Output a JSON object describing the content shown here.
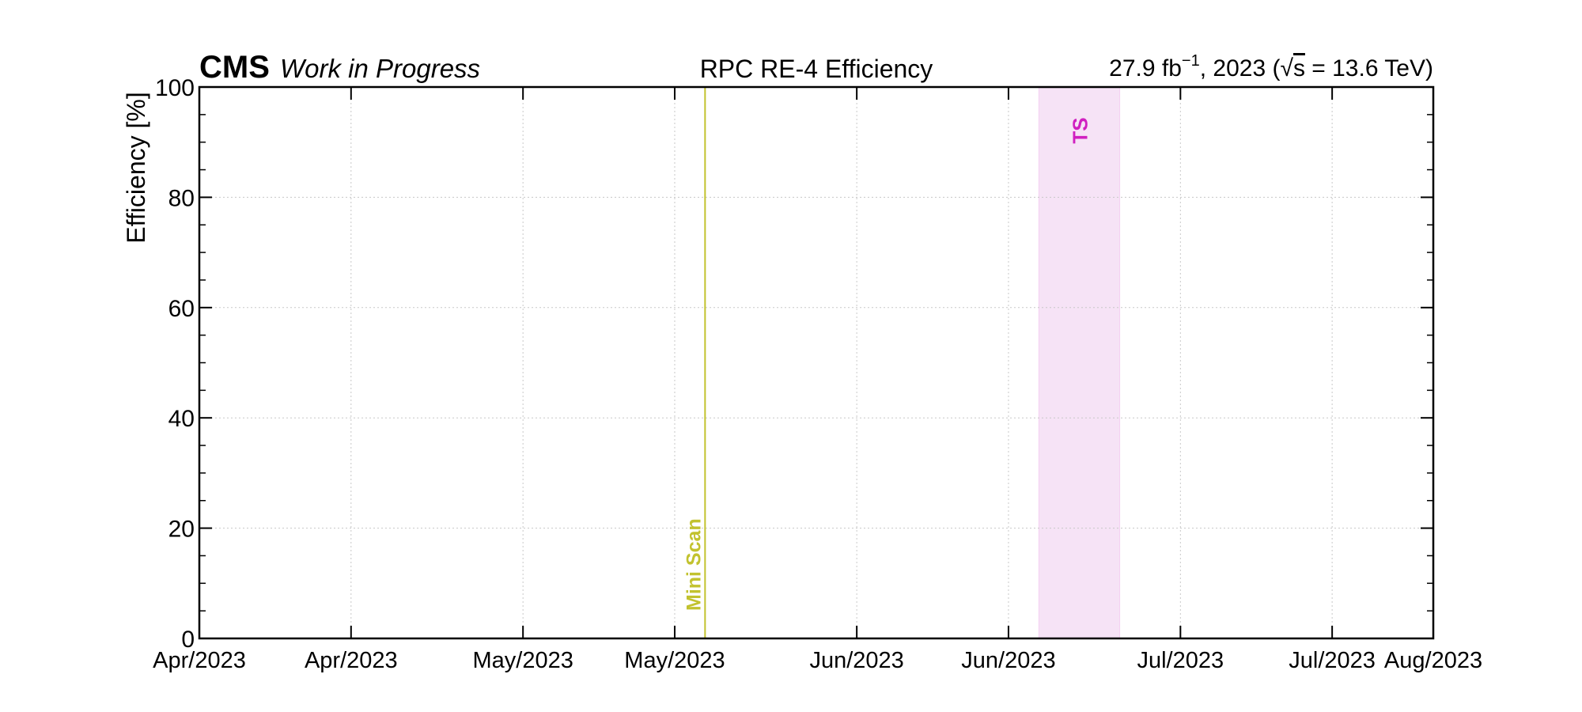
{
  "header": {
    "experiment": "CMS",
    "status": "Work in Progress",
    "lumi_value": "27.9 fb",
    "lumi_exp": "−1",
    "lumi_year": ", 2023 (",
    "sqrt_symbol": "√",
    "sqrt_arg": "s",
    "energy": " = 13.6 TeV)"
  },
  "chart_data": {
    "type": "line",
    "title": "RPC RE-4 Efficiency",
    "xlabel": "",
    "ylabel": "Efficiency [%]",
    "x_axis_type": "date",
    "xlim": [
      "2023-04-01",
      "2023-08-01"
    ],
    "ylim": [
      0,
      100
    ],
    "yticks": [
      0,
      20,
      40,
      60,
      80,
      100
    ],
    "y_minor_step": 5,
    "xticks": [
      {
        "date": "2023-04-01",
        "label": "Apr/2023"
      },
      {
        "date": "2023-04-16",
        "label": "Apr/2023"
      },
      {
        "date": "2023-05-03",
        "label": "May/2023"
      },
      {
        "date": "2023-05-18",
        "label": "May/2023"
      },
      {
        "date": "2023-06-05",
        "label": "Jun/2023"
      },
      {
        "date": "2023-06-20",
        "label": "Jun/2023"
      },
      {
        "date": "2023-07-07",
        "label": "Jul/2023"
      },
      {
        "date": "2023-07-22",
        "label": "Jul/2023"
      },
      {
        "date": "2023-08-01",
        "label": "Aug/2023"
      }
    ],
    "grid": true,
    "series": [],
    "annotations": [
      {
        "kind": "vline",
        "date": "2023-05-21",
        "label": "Mini Scan",
        "color": "#c2c22e"
      },
      {
        "kind": "band",
        "start": "2023-06-23",
        "end": "2023-07-01",
        "label": "TS",
        "color": "#d020c0",
        "fill": "#f6e3f6"
      }
    ]
  }
}
